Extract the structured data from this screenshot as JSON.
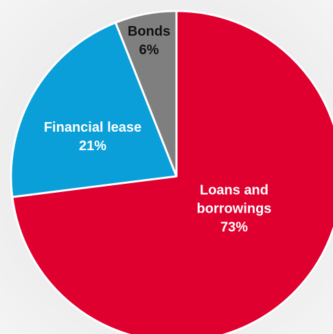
{
  "chart_data": {
    "type": "pie",
    "categories": [
      "Loans and borrowings",
      "Financial lease",
      "Bonds"
    ],
    "values": [
      73,
      21,
      6
    ],
    "value_labels": [
      "73%",
      "21%",
      "6%"
    ],
    "colors": [
      "#e0002f",
      "#0a9fd8",
      "#7f7f7f"
    ]
  }
}
